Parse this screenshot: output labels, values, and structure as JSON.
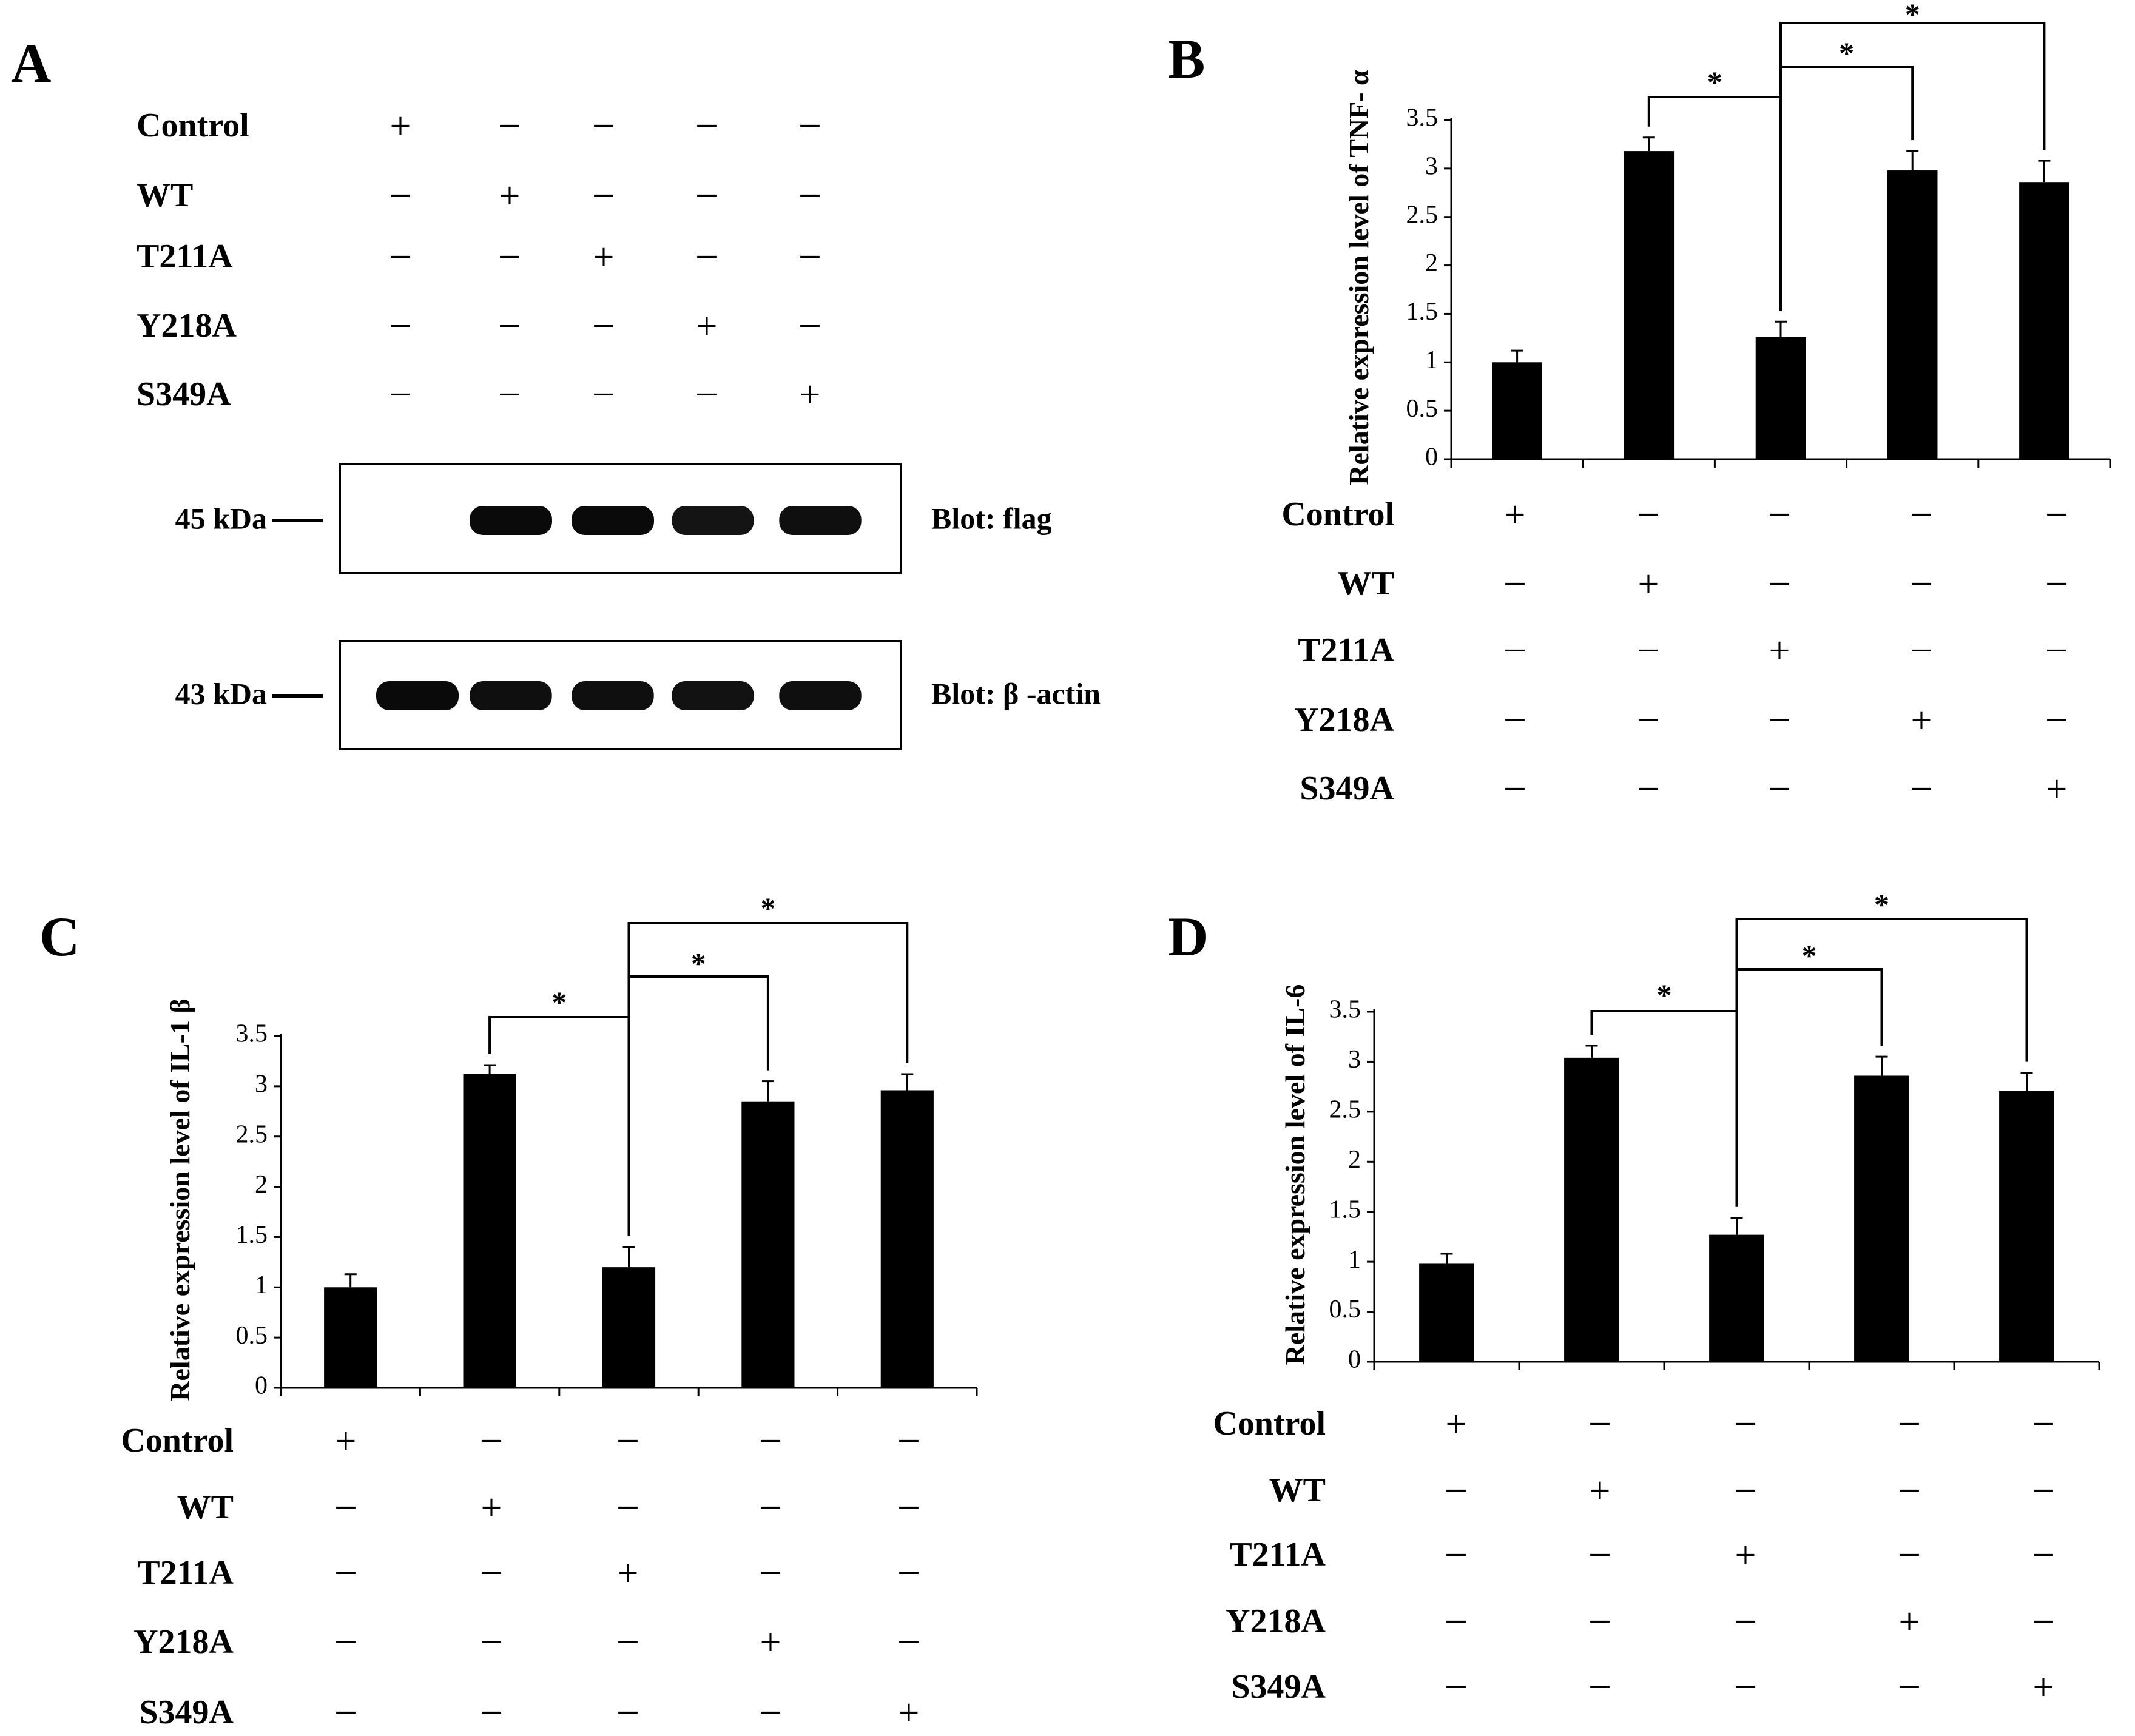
{
  "rows": [
    "Control",
    "WT",
    "T211A",
    "Y218A",
    "S349A"
  ],
  "plus": "+",
  "minus": "–",
  "panel_a": {
    "letter": "A",
    "blots": [
      {
        "kda": "45 kDa",
        "label": "Blot: flag",
        "intensity": [
          0,
          1,
          1,
          0.92,
          0.95
        ]
      },
      {
        "kda": "43 kDa",
        "label": "Blot:  β -actin",
        "intensity": [
          1,
          0.95,
          0.95,
          0.93,
          0.95
        ]
      }
    ]
  },
  "chart_data": [
    {
      "panel": "B",
      "type": "bar",
      "ylabel": "Relative expression level of TNF- α",
      "categories": [
        "Control",
        "WT",
        "T211A",
        "Y218A",
        "S349A"
      ],
      "values": [
        1.0,
        3.18,
        1.26,
        2.98,
        2.86
      ],
      "errors": [
        0.12,
        0.14,
        0.16,
        0.2,
        0.22
      ],
      "ylim": [
        0,
        3.5
      ],
      "yticks": [
        "0",
        "0.5",
        "1",
        "1.5",
        "2",
        "2.5",
        "3",
        "3.5"
      ],
      "significance": [
        {
          "from": 1,
          "to": 2,
          "label": "*"
        },
        {
          "from": 2,
          "to": 3,
          "label": "*"
        },
        {
          "from": 2,
          "to": 4,
          "label": "*"
        }
      ]
    },
    {
      "panel": "C",
      "type": "bar",
      "ylabel": "Relative expression level of IL-1 β",
      "categories": [
        "Control",
        "WT",
        "T211A",
        "Y218A",
        "S349A"
      ],
      "values": [
        1.0,
        3.12,
        1.2,
        2.85,
        2.96
      ],
      "errors": [
        0.13,
        0.09,
        0.2,
        0.2,
        0.16
      ],
      "ylim": [
        0,
        3.5
      ],
      "yticks": [
        "0",
        "0.5",
        "1",
        "1.5",
        "2",
        "2.5",
        "3",
        "3.5"
      ],
      "significance": [
        {
          "from": 1,
          "to": 2,
          "label": "*"
        },
        {
          "from": 2,
          "to": 3,
          "label": "*"
        },
        {
          "from": 2,
          "to": 4,
          "label": "*"
        }
      ]
    },
    {
      "panel": "D",
      "type": "bar",
      "ylabel": "Relative expression level of IL-6",
      "categories": [
        "Control",
        "WT",
        "T211A",
        "Y218A",
        "S349A"
      ],
      "values": [
        0.98,
        3.04,
        1.27,
        2.86,
        2.71
      ],
      "errors": [
        0.1,
        0.12,
        0.17,
        0.19,
        0.18
      ],
      "ylim": [
        0,
        3.5
      ],
      "yticks": [
        "0",
        "0.5",
        "1",
        "1.5",
        "2",
        "2.5",
        "3",
        "3.5"
      ],
      "significance": [
        {
          "from": 1,
          "to": 2,
          "label": "*"
        },
        {
          "from": 2,
          "to": 3,
          "label": "*"
        },
        {
          "from": 2,
          "to": 4,
          "label": "*"
        }
      ]
    }
  ]
}
